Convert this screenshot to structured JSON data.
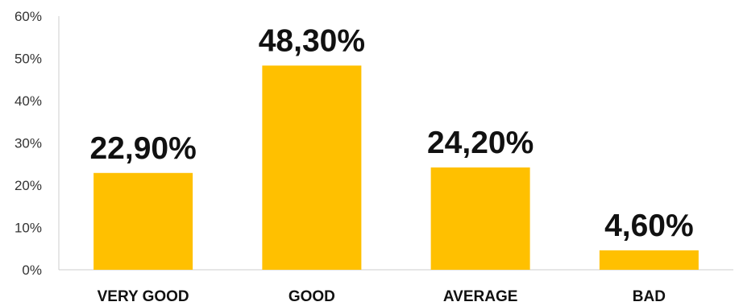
{
  "chart_data": {
    "type": "bar",
    "categories": [
      "VERY GOOD",
      "GOOD",
      "AVERAGE",
      "BAD"
    ],
    "values": [
      22.9,
      48.3,
      24.2,
      4.6
    ],
    "data_labels": [
      "22,90%",
      "48,30%",
      "24,20%",
      "4,60%"
    ],
    "title": "",
    "xlabel": "",
    "ylabel": "",
    "ylim": [
      0,
      60
    ],
    "yticks": [
      0,
      10,
      20,
      30,
      40,
      50,
      60
    ],
    "ytick_labels": [
      "0%",
      "10%",
      "20%",
      "30%",
      "40%",
      "50%",
      "60%"
    ],
    "grid": false,
    "legend": "none",
    "bar_color": "#FFC000"
  }
}
